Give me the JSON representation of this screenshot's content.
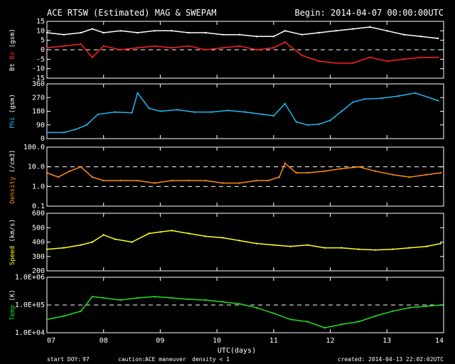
{
  "header": {
    "title": "ACE RTSW (Estimated) MAG & SWEPAM",
    "begin": "Begin: 2014-04-07 00:00:00UTC"
  },
  "footer": {
    "start_doy_label": "start DOY:",
    "start_doy_value": "97",
    "caution_label": "caution:",
    "caution_maneuver": "ACE maneuver",
    "caution_density": "density < 1",
    "created": "created: 2014-04-13 22:02:02UTC"
  },
  "colors": {
    "bt": "#ffffff",
    "bz": "#ff2020",
    "phi": "#20b8f0",
    "density": "#ff8c10",
    "speed": "#ffff20",
    "temp": "#20e020",
    "maneuver": "#ffff20",
    "density_flag": "#ff8c10"
  },
  "chart_data": {
    "type": "line",
    "x_axis": {
      "label": "UTC(days)",
      "range": [
        7,
        14
      ],
      "ticks": [
        "07",
        "08",
        "09",
        "10",
        "11",
        "12",
        "13",
        "14"
      ]
    },
    "panels": [
      {
        "id": "mag",
        "ylabel_parts": [
          "Bt",
          "Bz",
          "(gsm)"
        ],
        "ylim": [
          -15,
          15
        ],
        "ticks": [
          "15",
          "10",
          "5",
          "0",
          "-5",
          "-10",
          "-15"
        ],
        "scale": "linear",
        "reference_lines": [
          0
        ],
        "series": [
          {
            "name": "Bt",
            "x": [
              7.0,
              7.3,
              7.6,
              7.8,
              8.0,
              8.3,
              8.6,
              8.9,
              9.2,
              9.5,
              9.8,
              10.1,
              10.4,
              10.7,
              11.0,
              11.2,
              11.5,
              11.8,
              12.1,
              12.4,
              12.7,
              13.0,
              13.3,
              13.6,
              13.9
            ],
            "values": [
              9,
              8,
              9,
              11,
              9,
              10,
              9,
              10,
              10,
              9,
              9,
              8,
              8,
              7,
              7,
              10,
              8,
              9,
              10,
              11,
              12,
              10,
              8,
              7,
              6
            ]
          },
          {
            "name": "Bz",
            "x": [
              7.0,
              7.3,
              7.6,
              7.8,
              8.0,
              8.3,
              8.6,
              8.9,
              9.2,
              9.5,
              9.8,
              10.1,
              10.4,
              10.7,
              11.0,
              11.2,
              11.5,
              11.8,
              12.1,
              12.4,
              12.7,
              13.0,
              13.3,
              13.6,
              13.9
            ],
            "values": [
              1,
              2,
              3,
              -4,
              2,
              0,
              1,
              2,
              1,
              2,
              0,
              1,
              2,
              0,
              1,
              4,
              -3,
              -6,
              -7,
              -7,
              -4,
              -6,
              -5,
              -4,
              -4
            ]
          }
        ]
      },
      {
        "id": "phi",
        "ylabel_parts": [
          "Phi",
          "(gsm)"
        ],
        "ylim": [
          0,
          360
        ],
        "ticks": [
          "360",
          "270",
          "180",
          "90",
          "0"
        ],
        "scale": "linear",
        "series": [
          {
            "name": "Phi",
            "x": [
              7.0,
              7.3,
              7.5,
              7.7,
              7.9,
              8.2,
              8.5,
              8.6,
              8.8,
              9.0,
              9.3,
              9.6,
              9.9,
              10.2,
              10.5,
              10.8,
              11.0,
              11.2,
              11.4,
              11.6,
              11.8,
              12.0,
              12.2,
              12.4,
              12.6,
              12.9,
              13.2,
              13.5,
              13.9
            ],
            "values": [
              40,
              40,
              60,
              90,
              160,
              175,
              170,
              300,
              200,
              180,
              190,
              175,
              175,
              185,
              175,
              160,
              150,
              230,
              110,
              90,
              95,
              120,
              180,
              240,
              260,
              265,
              280,
              300,
              250
            ]
          }
        ]
      },
      {
        "id": "density",
        "ylabel_parts": [
          "Density",
          "(/cm3)"
        ],
        "ylim": [
          0.1,
          100
        ],
        "ticks": [
          "100.0",
          "10.0",
          "1.0",
          "0.1"
        ],
        "scale": "log",
        "reference_lines": [
          10,
          1
        ],
        "series": [
          {
            "name": "Density",
            "x": [
              7.0,
              7.2,
              7.4,
              7.6,
              7.8,
              8.0,
              8.3,
              8.6,
              8.9,
              9.2,
              9.5,
              9.8,
              10.1,
              10.4,
              10.7,
              10.9,
              11.1,
              11.2,
              11.4,
              11.6,
              11.9,
              12.2,
              12.5,
              12.8,
              13.1,
              13.4,
              13.7,
              13.95
            ],
            "values": [
              5,
              3,
              6,
              10,
              3,
              2,
              2,
              2,
              1.5,
              2,
              2,
              2,
              1.5,
              1.5,
              2,
              2,
              3,
              15,
              5,
              5,
              6,
              8,
              10,
              6,
              4,
              3,
              4,
              5
            ]
          }
        ]
      },
      {
        "id": "speed",
        "ylabel_parts": [
          "Speed",
          "(km/s)"
        ],
        "ylim": [
          200,
          600
        ],
        "ticks": [
          "600",
          "500",
          "400",
          "300",
          "200"
        ],
        "scale": "linear",
        "series": [
          {
            "name": "Speed",
            "x": [
              7.0,
              7.3,
              7.6,
              7.8,
              8.0,
              8.2,
              8.5,
              8.8,
              9.0,
              9.2,
              9.5,
              9.8,
              10.1,
              10.4,
              10.7,
              11.0,
              11.3,
              11.6,
              11.9,
              12.2,
              12.5,
              12.8,
              13.1,
              13.4,
              13.7,
              13.95
            ],
            "values": [
              350,
              360,
              380,
              400,
              450,
              420,
              400,
              460,
              470,
              480,
              460,
              440,
              430,
              410,
              390,
              380,
              370,
              380,
              360,
              360,
              350,
              345,
              350,
              360,
              370,
              390
            ]
          }
        ]
      },
      {
        "id": "temp",
        "ylabel_parts": [
          "Temp",
          "(K)"
        ],
        "ylim": [
          10000,
          1000000
        ],
        "ticks": [
          "1.0E+06",
          "1.0E+05",
          "1.0E+04"
        ],
        "scale": "log",
        "reference_lines": [
          100000
        ],
        "series": [
          {
            "name": "Temp",
            "x": [
              7.0,
              7.3,
              7.6,
              7.8,
              8.0,
              8.3,
              8.6,
              8.9,
              9.2,
              9.5,
              9.8,
              10.1,
              10.4,
              10.7,
              11.0,
              11.3,
              11.6,
              11.9,
              12.2,
              12.5,
              12.8,
              13.1,
              13.4,
              13.7,
              13.95
            ],
            "values": [
              30000,
              40000,
              60000,
              200000,
              180000,
              150000,
              180000,
              200000,
              180000,
              160000,
              150000,
              130000,
              110000,
              80000,
              50000,
              30000,
              25000,
              15000,
              20000,
              25000,
              40000,
              60000,
              80000,
              90000,
              100000
            ]
          }
        ]
      }
    ]
  }
}
